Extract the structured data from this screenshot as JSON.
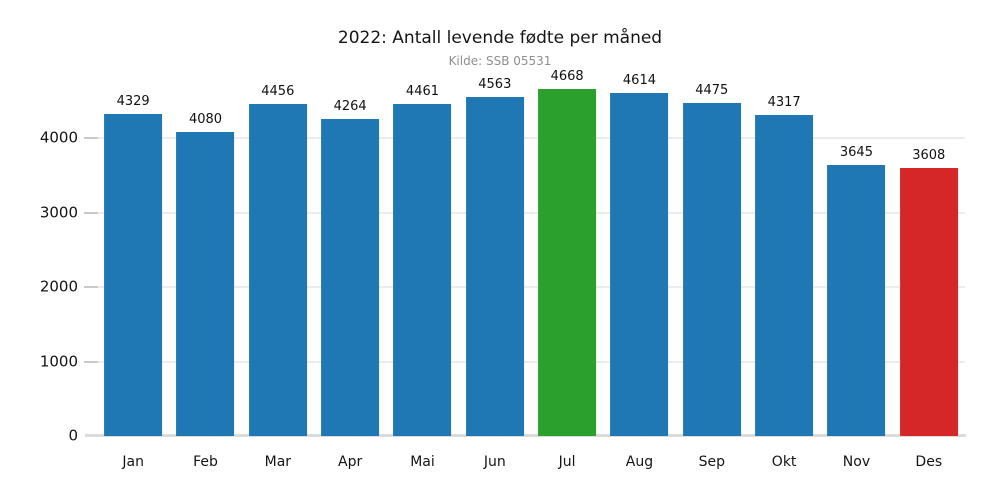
{
  "chart_data": {
    "type": "bar",
    "title": "2022: Antall levende fødte per måned",
    "subtitle": "Kilde: SSB 05531",
    "categories": [
      "Jan",
      "Feb",
      "Mar",
      "Apr",
      "Mai",
      "Jun",
      "Jul",
      "Aug",
      "Sep",
      "Okt",
      "Nov",
      "Des"
    ],
    "values": [
      4329,
      4080,
      4456,
      4264,
      4461,
      4563,
      4668,
      4614,
      4475,
      4317,
      3645,
      3608
    ],
    "bar_colors": [
      "#1f77b4",
      "#1f77b4",
      "#1f77b4",
      "#1f77b4",
      "#1f77b4",
      "#1f77b4",
      "#2ca02c",
      "#1f77b4",
      "#1f77b4",
      "#1f77b4",
      "#1f77b4",
      "#d62728"
    ],
    "value_labels_shown": true,
    "xlabel": "",
    "ylabel": "",
    "yticks": [
      0,
      1000,
      2000,
      3000,
      4000
    ],
    "ylim": [
      0,
      5000
    ],
    "grid": "horizontal",
    "legend": "none",
    "colors": {
      "default_bar": "#1f77b4",
      "max_highlight": "#2ca02c",
      "min_highlight": "#d62728",
      "gridline": "#ececec",
      "baseline": "#dcdcdc",
      "subtitle_text": "#8f8f8f",
      "background": "#ffffff"
    }
  }
}
